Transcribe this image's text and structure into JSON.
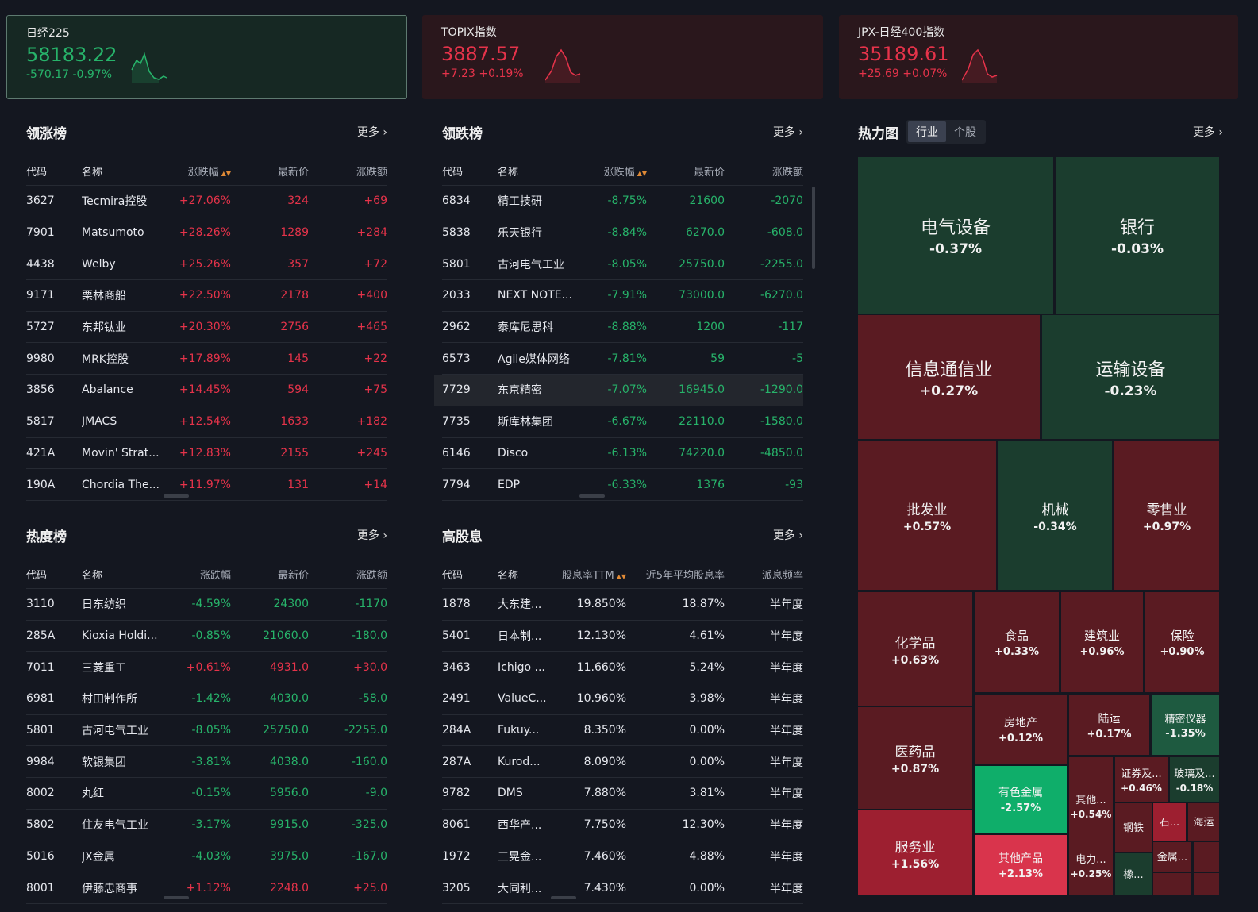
{
  "cards": [
    {
      "name": "日经225",
      "value": "58183.22",
      "change": "-570.17 -0.97%",
      "dir": "down"
    },
    {
      "name": "TOPIX指数",
      "value": "3887.57",
      "change": "+7.23 +0.19%",
      "dir": "up"
    },
    {
      "name": "JPX-日经400指数",
      "value": "35189.61",
      "change": "+25.69 +0.07%",
      "dir": "up"
    }
  ],
  "gainers": {
    "title": "领涨榜",
    "more": "更多 ›",
    "columns": [
      "代码",
      "名称",
      "涨跌幅",
      "最新价",
      "涨跌额"
    ],
    "sort_icon": "▲▼",
    "rows": [
      {
        "code": "3627",
        "name": "Tecmira控股",
        "pct": "+27.06%",
        "price": "324",
        "chg": "+69",
        "dir": "up"
      },
      {
        "code": "7901",
        "name": "Matsumoto",
        "pct": "+28.26%",
        "price": "1289",
        "chg": "+284",
        "dir": "up"
      },
      {
        "code": "4438",
        "name": "Welby",
        "pct": "+25.26%",
        "price": "357",
        "chg": "+72",
        "dir": "up"
      },
      {
        "code": "9171",
        "name": "栗林商船",
        "pct": "+22.50%",
        "price": "2178",
        "chg": "+400",
        "dir": "up"
      },
      {
        "code": "5727",
        "name": "东邦钛业",
        "pct": "+20.30%",
        "price": "2756",
        "chg": "+465",
        "dir": "up"
      },
      {
        "code": "9980",
        "name": "MRK控股",
        "pct": "+17.89%",
        "price": "145",
        "chg": "+22",
        "dir": "up"
      },
      {
        "code": "3856",
        "name": "Abalance",
        "pct": "+14.45%",
        "price": "594",
        "chg": "+75",
        "dir": "up"
      },
      {
        "code": "5817",
        "name": "JMACS",
        "pct": "+12.54%",
        "price": "1633",
        "chg": "+182",
        "dir": "up"
      },
      {
        "code": "421A",
        "name": "Movin' Strat...",
        "pct": "+12.83%",
        "price": "2155",
        "chg": "+245",
        "dir": "up"
      },
      {
        "code": "190A",
        "name": "Chordia The...",
        "pct": "+11.97%",
        "price": "131",
        "chg": "+14",
        "dir": "up"
      }
    ]
  },
  "losers": {
    "title": "领跌榜",
    "more": "更多 ›",
    "columns": [
      "代码",
      "名称",
      "涨跌幅",
      "最新价",
      "涨跌额"
    ],
    "sort_icon": "▲▼",
    "rows": [
      {
        "code": "6834",
        "name": "精工技研",
        "pct": "-8.75%",
        "price": "21600",
        "chg": "-2070",
        "dir": "down"
      },
      {
        "code": "5838",
        "name": "乐天银行",
        "pct": "-8.84%",
        "price": "6270.0",
        "chg": "-608.0",
        "dir": "down"
      },
      {
        "code": "5801",
        "name": "古河电气工业",
        "pct": "-8.05%",
        "price": "25750.0",
        "chg": "-2255.0",
        "dir": "down"
      },
      {
        "code": "2033",
        "name": "NEXT NOTE...",
        "pct": "-7.91%",
        "price": "73000.0",
        "chg": "-6270.0",
        "dir": "down"
      },
      {
        "code": "2962",
        "name": "泰库尼思科",
        "pct": "-8.88%",
        "price": "1200",
        "chg": "-117",
        "dir": "down"
      },
      {
        "code": "6573",
        "name": "Agile媒体网络",
        "pct": "-7.81%",
        "price": "59",
        "chg": "-5",
        "dir": "down"
      },
      {
        "code": "7729",
        "name": "东京精密",
        "pct": "-7.07%",
        "price": "16945.0",
        "chg": "-1290.0",
        "dir": "down"
      },
      {
        "code": "7735",
        "name": "斯库林集团",
        "pct": "-6.67%",
        "price": "22110.0",
        "chg": "-1580.0",
        "dir": "down"
      },
      {
        "code": "6146",
        "name": "Disco",
        "pct": "-6.13%",
        "price": "74220.0",
        "chg": "-4850.0",
        "dir": "down"
      },
      {
        "code": "7794",
        "name": "EDP",
        "pct": "-6.33%",
        "price": "1376",
        "chg": "-93",
        "dir": "down"
      }
    ]
  },
  "hot": {
    "title": "热度榜",
    "more": "更多 ›",
    "columns": [
      "代码",
      "名称",
      "涨跌幅",
      "最新价",
      "涨跌额"
    ],
    "rows": [
      {
        "code": "3110",
        "name": "日东纺织",
        "pct": "-4.59%",
        "price": "24300",
        "chg": "-1170",
        "dir": "down"
      },
      {
        "code": "285A",
        "name": "Kioxia Holdi...",
        "pct": "-0.85%",
        "price": "21060.0",
        "chg": "-180.0",
        "dir": "down"
      },
      {
        "code": "7011",
        "name": "三菱重工",
        "pct": "+0.61%",
        "price": "4931.0",
        "chg": "+30.0",
        "dir": "up"
      },
      {
        "code": "6981",
        "name": "村田制作所",
        "pct": "-1.42%",
        "price": "4030.0",
        "chg": "-58.0",
        "dir": "down"
      },
      {
        "code": "5801",
        "name": "古河电气工业",
        "pct": "-8.05%",
        "price": "25750.0",
        "chg": "-2255.0",
        "dir": "down"
      },
      {
        "code": "9984",
        "name": "软银集团",
        "pct": "-3.81%",
        "price": "4038.0",
        "chg": "-160.0",
        "dir": "down"
      },
      {
        "code": "8002",
        "name": "丸红",
        "pct": "-0.15%",
        "price": "5956.0",
        "chg": "-9.0",
        "dir": "down"
      },
      {
        "code": "5802",
        "name": "住友电气工业",
        "pct": "-3.17%",
        "price": "9915.0",
        "chg": "-325.0",
        "dir": "down"
      },
      {
        "code": "5016",
        "name": "JX金属",
        "pct": "-4.03%",
        "price": "3975.0",
        "chg": "-167.0",
        "dir": "down"
      },
      {
        "code": "8001",
        "name": "伊藤忠商事",
        "pct": "+1.12%",
        "price": "2248.0",
        "chg": "+25.0",
        "dir": "up"
      }
    ]
  },
  "dividend": {
    "title": "高股息",
    "more": "更多 ›",
    "columns": [
      "代码",
      "名称",
      "股息率TTM",
      "近5年平均股息率",
      "派息频率"
    ],
    "sort_icon": "▲▼",
    "rows": [
      {
        "code": "1878",
        "name": "大东建...",
        "ttm": "19.850%",
        "avg": "18.87%",
        "freq": "半年度"
      },
      {
        "code": "5401",
        "name": "日本制...",
        "ttm": "12.130%",
        "avg": "4.61%",
        "freq": "半年度"
      },
      {
        "code": "3463",
        "name": "Ichigo ...",
        "ttm": "11.660%",
        "avg": "5.24%",
        "freq": "半年度"
      },
      {
        "code": "2491",
        "name": "ValueC...",
        "ttm": "10.960%",
        "avg": "3.98%",
        "freq": "半年度"
      },
      {
        "code": "284A",
        "name": "Fukuy...",
        "ttm": "8.350%",
        "avg": "0.00%",
        "freq": "半年度"
      },
      {
        "code": "287A",
        "name": "Kurod...",
        "ttm": "8.090%",
        "avg": "0.00%",
        "freq": "半年度"
      },
      {
        "code": "9782",
        "name": "DMS",
        "ttm": "7.880%",
        "avg": "3.81%",
        "freq": "半年度"
      },
      {
        "code": "8061",
        "name": "西华产...",
        "ttm": "7.750%",
        "avg": "12.30%",
        "freq": "半年度"
      },
      {
        "code": "1972",
        "name": "三晃金...",
        "ttm": "7.460%",
        "avg": "4.88%",
        "freq": "半年度"
      },
      {
        "code": "3205",
        "name": "大同利...",
        "ttm": "7.430%",
        "avg": "0.00%",
        "freq": "半年度"
      }
    ]
  },
  "heatmap": {
    "title": "热力图",
    "tabs": [
      "行业",
      "个股"
    ],
    "active_tab": 0,
    "more": "更多 ›",
    "tiles": [
      {
        "name": "电气设备",
        "pct": "-0.37%",
        "color": "#1b3d2e"
      },
      {
        "name": "银行",
        "pct": "-0.03%",
        "color": "#1b3d2e"
      },
      {
        "name": "信息通信业",
        "pct": "+0.27%",
        "color": "#5a1b22"
      },
      {
        "name": "运输设备",
        "pct": "-0.23%",
        "color": "#1b3d2e"
      },
      {
        "name": "批发业",
        "pct": "+0.57%",
        "color": "#5a1b22"
      },
      {
        "name": "机械",
        "pct": "-0.34%",
        "color": "#1b3d2e"
      },
      {
        "name": "零售业",
        "pct": "+0.97%",
        "color": "#5a1b22"
      },
      {
        "name": "化学品",
        "pct": "+0.63%",
        "color": "#5a1b22"
      },
      {
        "name": "食品",
        "pct": "+0.33%",
        "color": "#5a1b22"
      },
      {
        "name": "建筑业",
        "pct": "+0.96%",
        "color": "#5a1b22"
      },
      {
        "name": "保险",
        "pct": "+0.90%",
        "color": "#5a1b22"
      },
      {
        "name": "医药品",
        "pct": "+0.87%",
        "color": "#5a1b22"
      },
      {
        "name": "房地产",
        "pct": "+0.12%",
        "color": "#5a1b22"
      },
      {
        "name": "陆运",
        "pct": "+0.17%",
        "color": "#5a1b22"
      },
      {
        "name": "精密仪器",
        "pct": "-1.35%",
        "color": "#1e5a40"
      },
      {
        "name": "有色金属",
        "pct": "-2.57%",
        "color": "#0fae6a"
      },
      {
        "name": "其他...",
        "pct": "+0.54%",
        "color": "#5a1b22"
      },
      {
        "name": "证券及...",
        "pct": "+0.46%",
        "color": "#5a1b22"
      },
      {
        "name": "玻璃及...",
        "pct": "-0.18%",
        "color": "#1b3d2e"
      },
      {
        "name": "服务业",
        "pct": "+1.56%",
        "color": "#9d1f30"
      },
      {
        "name": "其他产品",
        "pct": "+2.13%",
        "color": "#d9344c"
      },
      {
        "name": "钢铁",
        "pct": "",
        "color": "#5a1b22"
      },
      {
        "name": "石...",
        "pct": "",
        "color": "#9d1f30"
      },
      {
        "name": "海运",
        "pct": "",
        "color": "#5a1b22"
      },
      {
        "name": "电力...",
        "pct": "+0.25%",
        "color": "#5a1b22"
      },
      {
        "name": "金属...",
        "pct": "",
        "color": "#5a1b22"
      },
      {
        "name": "橡...",
        "pct": "",
        "color": "#1b3d2e"
      },
      {
        "name": "",
        "pct": "",
        "color": "#5a1b22"
      },
      {
        "name": "",
        "pct": "",
        "color": "#5a1b22"
      },
      {
        "name": "",
        "pct": "",
        "color": "#5a1b22"
      }
    ]
  },
  "colors": {
    "up": "#e5334a",
    "down": "#27b36a",
    "background": "#141720"
  }
}
